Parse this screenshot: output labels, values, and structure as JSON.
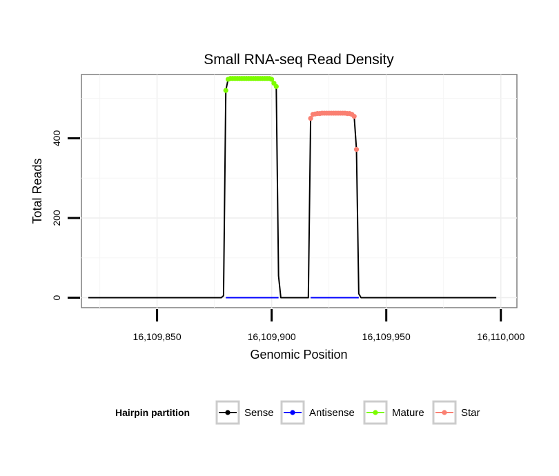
{
  "chart_data": {
    "type": "line",
    "title": "Small RNA-seq Read Density",
    "xlabel": "Genomic Position",
    "ylabel": "Total Reads",
    "xlim": [
      16109817,
      16110007
    ],
    "ylim": [
      -25,
      560
    ],
    "x_ticks": [
      16109850,
      16109900,
      16109950,
      16110000
    ],
    "x_tick_labels": [
      "16,109,850",
      "16,109,900",
      "16,109,950",
      "16,110,000"
    ],
    "y_ticks": [
      0,
      200,
      400
    ],
    "y_tick_labels": [
      "0",
      "200",
      "400"
    ],
    "grid": true,
    "legend": {
      "position": "bottom",
      "title": "Hairpin partition",
      "entries": [
        "Sense",
        "Antisense",
        "Mature",
        "Star"
      ]
    },
    "colors": {
      "Sense": "#000000",
      "Antisense": "#0000ff",
      "Mature": "#7cfc00",
      "Star": "#fa8072"
    },
    "series": [
      {
        "name": "Sense",
        "style": "line",
        "x": [
          16109820,
          16109878,
          16109879,
          16109880,
          16109881,
          16109882,
          16109883,
          16109885,
          16109890,
          16109895,
          16109899,
          16109900,
          16109901,
          16109902,
          16109903,
          16109904,
          16109916,
          16109917,
          16109918,
          16109920,
          16109925,
          16109930,
          16109934,
          16109935,
          16109936,
          16109937,
          16109938,
          16109939,
          16109998
        ],
        "values": [
          0,
          0,
          5,
          520,
          548,
          550,
          550,
          550,
          550,
          550,
          550,
          548,
          538,
          530,
          55,
          0,
          0,
          450,
          460,
          462,
          463,
          463,
          462,
          460,
          455,
          372,
          10,
          0,
          0
        ]
      },
      {
        "name": "Antisense",
        "style": "line",
        "x": [
          16109880,
          16109903,
          16109904,
          16109916,
          16109917,
          16109938
        ],
        "values": [
          0,
          0,
          null,
          null,
          0,
          0
        ]
      },
      {
        "name": "Mature",
        "style": "points",
        "x": [
          16109880,
          16109881,
          16109882,
          16109883,
          16109884,
          16109885,
          16109886,
          16109887,
          16109888,
          16109889,
          16109890,
          16109891,
          16109892,
          16109893,
          16109894,
          16109895,
          16109896,
          16109897,
          16109898,
          16109899,
          16109900,
          16109901,
          16109902
        ],
        "values": [
          520,
          548,
          550,
          550,
          550,
          550,
          550,
          550,
          550,
          550,
          550,
          550,
          550,
          550,
          550,
          550,
          550,
          550,
          550,
          550,
          548,
          538,
          530
        ]
      },
      {
        "name": "Star",
        "style": "points",
        "x": [
          16109917,
          16109918,
          16109919,
          16109920,
          16109921,
          16109922,
          16109923,
          16109924,
          16109925,
          16109926,
          16109927,
          16109928,
          16109929,
          16109930,
          16109931,
          16109932,
          16109933,
          16109934,
          16109935,
          16109936,
          16109937
        ],
        "values": [
          450,
          460,
          461,
          462,
          462,
          463,
          463,
          463,
          463,
          463,
          463,
          463,
          463,
          463,
          463,
          463,
          462,
          462,
          460,
          455,
          372
        ]
      }
    ]
  }
}
